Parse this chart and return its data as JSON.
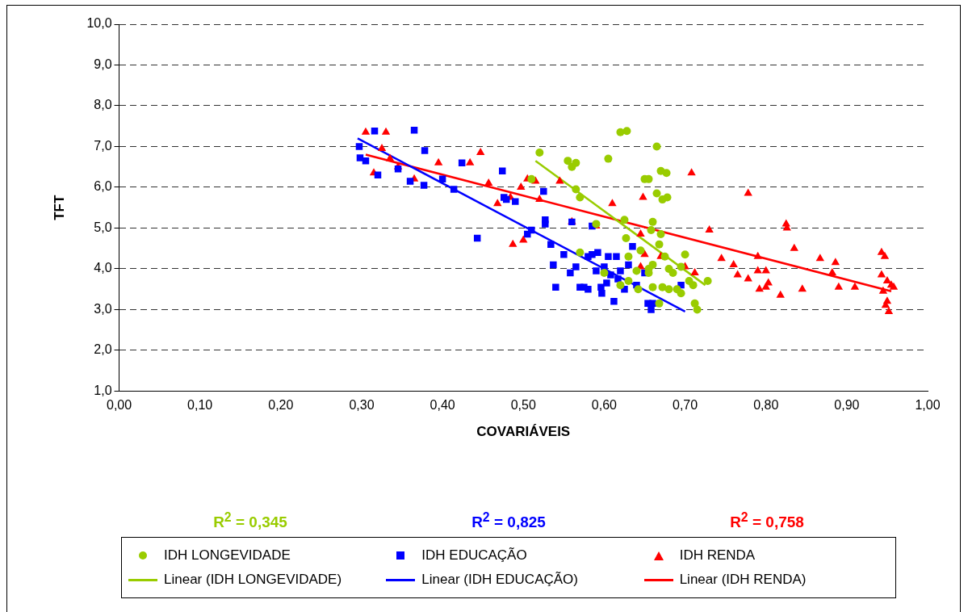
{
  "chart_data": {
    "type": "scatter",
    "xlabel": "COVARIÁVEIS",
    "ylabel": "TFT",
    "xlim": [
      0,
      1
    ],
    "xticks": [
      {
        "value": 0,
        "label": "0,00"
      },
      {
        "value": 0.1,
        "label": "0,10"
      },
      {
        "value": 0.2,
        "label": "0,20"
      },
      {
        "value": 0.3,
        "label": "0,30"
      },
      {
        "value": 0.4,
        "label": "0,40"
      },
      {
        "value": 0.5,
        "label": "0,50"
      },
      {
        "value": 0.6,
        "label": "0,60"
      },
      {
        "value": 0.7,
        "label": "0,70"
      },
      {
        "value": 0.8,
        "label": "0,80"
      },
      {
        "value": 0.9,
        "label": "0,90"
      },
      {
        "value": 1,
        "label": "1,00"
      }
    ],
    "ylim": [
      1,
      10
    ],
    "yticks": [
      {
        "value": 1,
        "label": "1,0"
      },
      {
        "value": 2,
        "label": "2,0"
      },
      {
        "value": 3,
        "label": "3,0"
      },
      {
        "value": 4,
        "label": "4,0"
      },
      {
        "value": 5,
        "label": "5,0"
      },
      {
        "value": 6,
        "label": "6,0"
      },
      {
        "value": 7,
        "label": "7,0"
      },
      {
        "value": 8,
        "label": "8,0"
      },
      {
        "value": 9,
        "label": "9,0"
      },
      {
        "value": 10,
        "label": "10,0"
      }
    ],
    "grid": "y",
    "legend": "bottom",
    "annotations": [
      "R$^{2}$ = 0,345",
      "R$^{2}$ = 0,825",
      "R$^{2}$ = 0,758"
    ],
    "series": [
      {
        "name": "IDH LONGEVIDADE",
        "type": "scatter",
        "marker": "circle",
        "color": "#99cc00",
        "x": [
          0.52,
          0.51,
          0.555,
          0.56,
          0.565,
          0.565,
          0.57,
          0.605,
          0.62,
          0.628,
          0.665,
          0.67,
          0.677,
          0.65,
          0.655,
          0.66,
          0.665,
          0.672,
          0.678,
          0.625,
          0.627,
          0.63,
          0.645,
          0.658,
          0.668,
          0.67,
          0.675,
          0.68,
          0.685,
          0.66,
          0.655,
          0.64,
          0.63,
          0.66,
          0.672,
          0.68,
          0.69,
          0.695,
          0.7,
          0.705,
          0.71,
          0.695,
          0.712,
          0.715,
          0.728,
          0.59,
          0.62,
          0.57,
          0.642,
          0.668,
          0.655,
          0.6
        ],
        "values": [
          6.85,
          6.2,
          6.65,
          6.5,
          6.6,
          5.95,
          5.75,
          6.7,
          7.35,
          7.38,
          7.0,
          6.4,
          6.35,
          6.2,
          6.2,
          5.15,
          5.85,
          5.7,
          5.75,
          5.2,
          4.75,
          4.3,
          4.45,
          4.95,
          4.6,
          4.85,
          4.3,
          4.0,
          3.9,
          4.1,
          4.0,
          3.95,
          3.7,
          3.55,
          3.55,
          3.5,
          3.5,
          4.05,
          4.35,
          3.7,
          3.6,
          3.4,
          3.15,
          3.0,
          3.7,
          5.1,
          3.6,
          4.4,
          3.5,
          3.15,
          3.9,
          3.9
        ]
      },
      {
        "name": "IDH EDUCAÇÃO",
        "type": "scatter",
        "marker": "square",
        "color": "#0000ff",
        "x": [
          0.297,
          0.298,
          0.305,
          0.316,
          0.32,
          0.345,
          0.36,
          0.365,
          0.377,
          0.378,
          0.4,
          0.414,
          0.424,
          0.443,
          0.474,
          0.476,
          0.479,
          0.49,
          0.505,
          0.51,
          0.525,
          0.527,
          0.527,
          0.534,
          0.537,
          0.54,
          0.55,
          0.558,
          0.56,
          0.565,
          0.57,
          0.58,
          0.58,
          0.585,
          0.59,
          0.592,
          0.596,
          0.597,
          0.6,
          0.603,
          0.605,
          0.608,
          0.612,
          0.615,
          0.617,
          0.62,
          0.625,
          0.63,
          0.64,
          0.635,
          0.65,
          0.654,
          0.658,
          0.66,
          0.695,
          0.585,
          0.575
        ],
        "values": [
          7.0,
          6.72,
          6.65,
          7.38,
          6.3,
          6.45,
          6.15,
          7.4,
          6.05,
          6.9,
          6.2,
          5.95,
          6.6,
          4.75,
          6.4,
          5.75,
          5.7,
          5.65,
          4.85,
          4.95,
          5.9,
          5.2,
          5.1,
          4.6,
          4.1,
          3.55,
          4.35,
          3.9,
          5.15,
          4.05,
          3.55,
          3.5,
          4.3,
          4.35,
          3.95,
          4.4,
          3.55,
          3.4,
          4.05,
          3.65,
          4.3,
          3.85,
          3.2,
          4.3,
          3.75,
          3.95,
          3.5,
          4.1,
          3.6,
          4.55,
          3.9,
          3.15,
          3.0,
          3.15,
          3.6,
          5.05,
          3.55
        ]
      },
      {
        "name": "IDH RENDA",
        "type": "scatter",
        "marker": "triangle",
        "color": "#ff0000",
        "x": [
          0.305,
          0.315,
          0.325,
          0.33,
          0.335,
          0.345,
          0.365,
          0.395,
          0.434,
          0.447,
          0.457,
          0.468,
          0.484,
          0.487,
          0.497,
          0.5,
          0.505,
          0.515,
          0.52,
          0.545,
          0.56,
          0.59,
          0.61,
          0.645,
          0.648,
          0.645,
          0.65,
          0.67,
          0.7,
          0.708,
          0.712,
          0.73,
          0.745,
          0.76,
          0.765,
          0.778,
          0.778,
          0.79,
          0.79,
          0.792,
          0.8,
          0.8,
          0.803,
          0.818,
          0.825,
          0.826,
          0.835,
          0.845,
          0.867,
          0.882,
          0.886,
          0.89,
          0.91,
          0.943,
          0.947,
          0.943,
          0.945,
          0.948,
          0.95,
          0.952,
          0.955,
          0.958,
          0.95
        ],
        "values": [
          7.35,
          6.35,
          6.95,
          7.35,
          6.7,
          6.5,
          6.2,
          6.6,
          6.6,
          6.85,
          6.1,
          5.6,
          5.75,
          4.6,
          6.0,
          4.7,
          6.2,
          6.15,
          5.7,
          6.15,
          5.15,
          5.05,
          5.6,
          4.85,
          5.75,
          4.05,
          4.35,
          4.3,
          4.05,
          6.35,
          3.9,
          4.95,
          4.25,
          4.1,
          3.85,
          5.85,
          3.75,
          3.95,
          4.3,
          3.5,
          3.55,
          3.95,
          3.65,
          3.35,
          5.1,
          5.0,
          4.5,
          3.5,
          4.25,
          3.9,
          4.15,
          3.55,
          3.55,
          4.4,
          4.3,
          3.85,
          3.45,
          3.1,
          3.2,
          2.95,
          3.6,
          3.55,
          3.7
        ]
      },
      {
        "name": "Linear (IDH LONGEVIDADE)",
        "type": "line",
        "marker": "none",
        "color": "#99cc00",
        "x": [
          0.515,
          0.725
        ],
        "values": [
          6.65,
          3.6
        ]
      },
      {
        "name": "Linear (IDH EDUCAÇÃO)",
        "type": "line",
        "marker": "none",
        "color": "#0000ff",
        "x": [
          0.295,
          0.7
        ],
        "values": [
          7.2,
          2.95
        ]
      },
      {
        "name": "Linear (IDH RENDA)",
        "type": "line",
        "marker": "none",
        "color": "#ff0000",
        "x": [
          0.305,
          0.955
        ],
        "values": [
          6.8,
          3.45
        ]
      }
    ]
  }
}
